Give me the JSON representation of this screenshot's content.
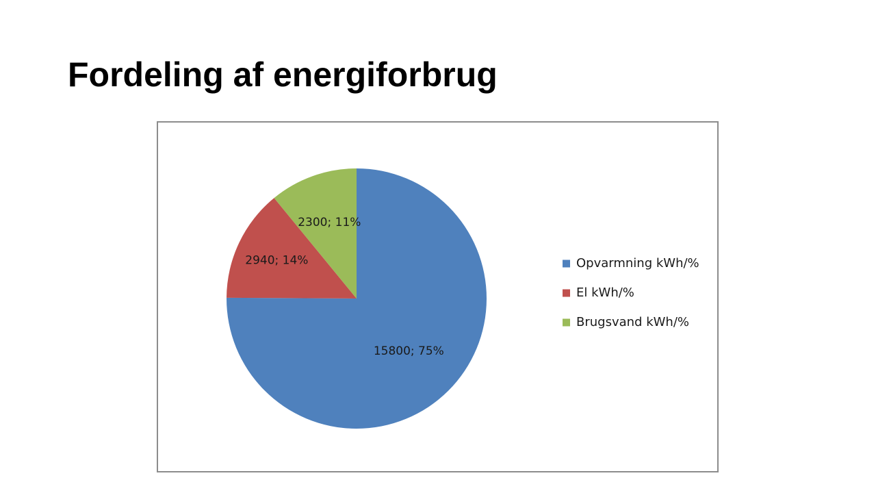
{
  "slide": {
    "title": "Fordeling af energiforbrug"
  },
  "chart_data": {
    "type": "pie",
    "title": "",
    "legend_position": "right",
    "start_angle": "12 o'clock, clockwise",
    "slices": [
      {
        "name": "Opvarmning kWh/%",
        "value": 15800,
        "percent": 75,
        "label": "15800; 75%",
        "color": "#4f81bd"
      },
      {
        "name": "El kWh/%",
        "value": 2940,
        "percent": 14,
        "label": "2940; 14%",
        "color": "#c0504d"
      },
      {
        "name": "Brugsvand kWh/%",
        "value": 2300,
        "percent": 11,
        "label": "2300; 11%",
        "color": "#9bbb59"
      }
    ]
  }
}
